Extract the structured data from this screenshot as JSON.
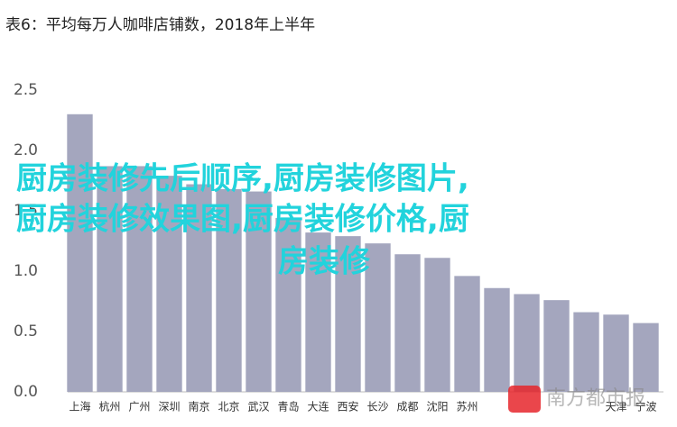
{
  "chart_data": {
    "type": "bar",
    "title": "表6：平均每万人咖啡店铺数，2018年上半年",
    "categories": [
      "上海",
      "杭州",
      "广州",
      "深圳",
      "南京",
      "北京",
      "武汉",
      "青岛",
      "大连",
      "西安",
      "长沙",
      "成都",
      "沈阳",
      "苏州",
      null,
      null,
      null,
      null,
      "天津",
      "宁波"
    ],
    "values": [
      2.3,
      1.87,
      1.87,
      1.79,
      1.72,
      1.68,
      1.66,
      1.44,
      1.32,
      1.29,
      1.23,
      1.14,
      1.11,
      0.96,
      0.86,
      0.81,
      0.76,
      0.66,
      0.64,
      0.57
    ],
    "color": "#a4a6be",
    "ylim": [
      0,
      2.5
    ],
    "yticks": [
      {
        "value": 0,
        "label": "0.0"
      },
      {
        "value": 0.5,
        "label": "0.5"
      },
      {
        "value": 1,
        "label": "1.0"
      },
      {
        "value": 1.5,
        "label": "1.5"
      },
      {
        "value": 2,
        "label": "2.0"
      },
      {
        "value": 2.5,
        "label": "2.5"
      }
    ],
    "overlay_text": [
      "厨房装修先后顺序,厨房装修图片,",
      "厨房装修效果图,厨房装修价格,厨",
      "房装修"
    ],
    "watermark": "南方都市报"
  }
}
